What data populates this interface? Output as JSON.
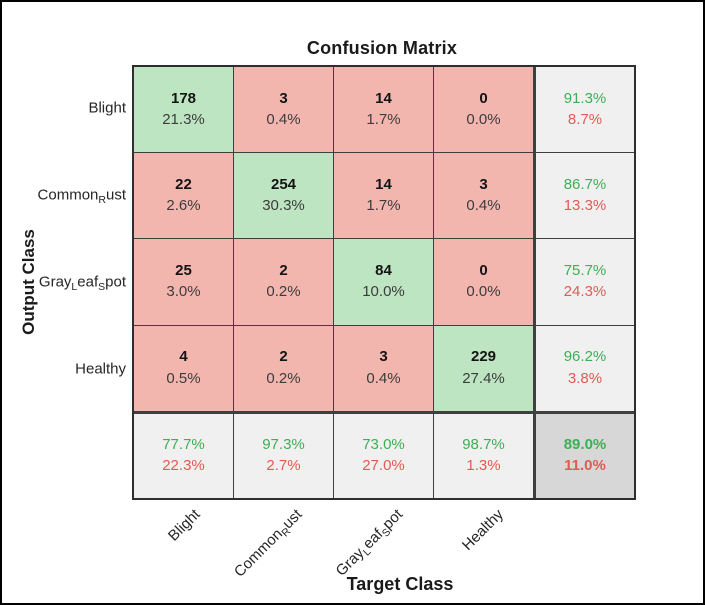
{
  "chart_data": {
    "type": "heatmap",
    "title": "Confusion Matrix",
    "xlabel": "Target Class",
    "ylabel": "Output Class",
    "classes": [
      "Blight",
      "Common_Rust",
      "Gray_Leaf_Spot",
      "Healthy"
    ],
    "counts": [
      [
        178,
        3,
        14,
        0
      ],
      [
        22,
        254,
        14,
        3
      ],
      [
        25,
        2,
        84,
        0
      ],
      [
        4,
        2,
        3,
        229
      ]
    ],
    "percent_of_total": [
      [
        "21.3%",
        "0.4%",
        "1.7%",
        "0.0%"
      ],
      [
        "2.6%",
        "30.3%",
        "1.7%",
        "0.4%"
      ],
      [
        "3.0%",
        "0.2%",
        "10.0%",
        "0.0%"
      ],
      [
        "0.5%",
        "0.2%",
        "0.4%",
        "27.4%"
      ]
    ],
    "row_summary": [
      [
        "91.3%",
        "8.7%"
      ],
      [
        "86.7%",
        "13.3%"
      ],
      [
        "75.7%",
        "24.3%"
      ],
      [
        "96.2%",
        "3.8%"
      ]
    ],
    "col_summary": [
      [
        "77.7%",
        "22.3%"
      ],
      [
        "97.3%",
        "2.7%"
      ],
      [
        "73.0%",
        "27.0%"
      ],
      [
        "98.7%",
        "1.3%"
      ]
    ],
    "overall": [
      "89.0%",
      "11.0%"
    ],
    "legend_position": "none",
    "grid": true
  },
  "colors": {
    "diagonal_cell": "#bde5c1",
    "off_diagonal_cell": "#f3b6af",
    "summary_cell": "#f0f0f0",
    "overall_cell": "#d7d7d7",
    "good_text": "#3cb054",
    "bad_text": "#de5c53",
    "grid_line": "#3f3f3f"
  }
}
